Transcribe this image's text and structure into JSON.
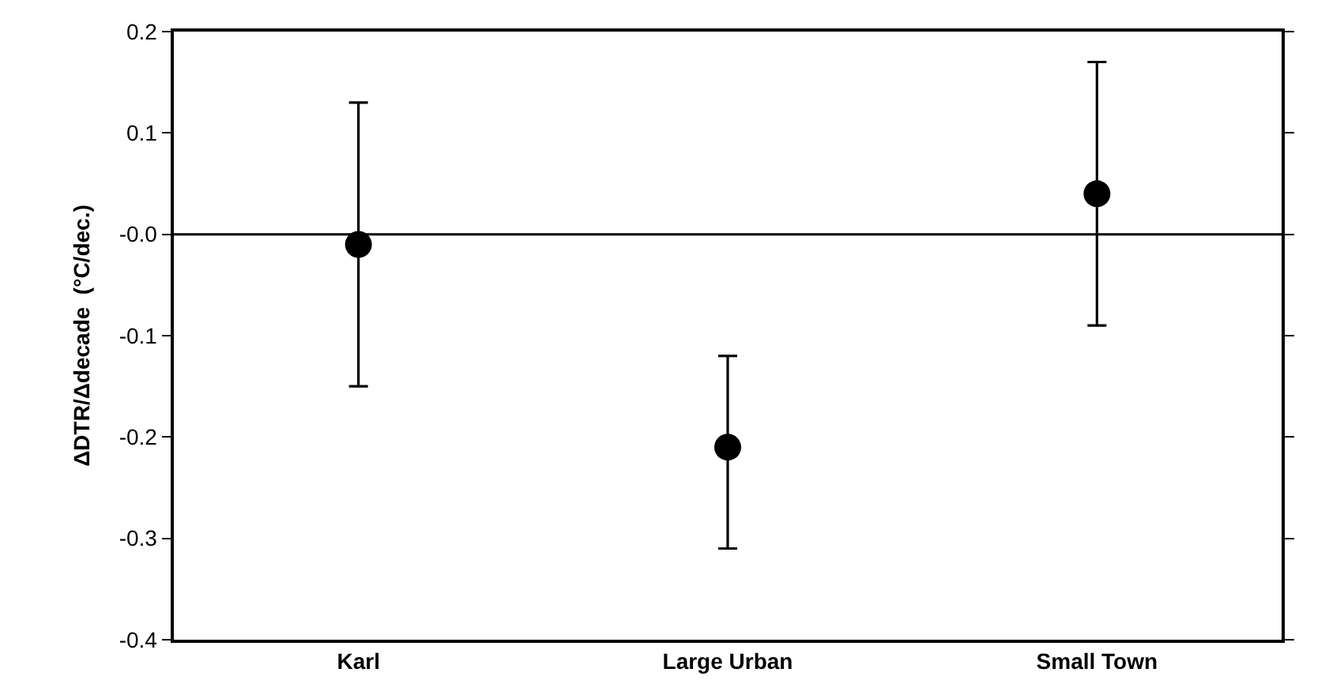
{
  "chart_data": {
    "type": "scatter",
    "ylabel": "ΔDTR/Δdecade  (°C/dec.)",
    "categories": [
      "Karl",
      "Large Urban",
      "Small Town"
    ],
    "series": [
      {
        "color": "#000000",
        "values": [
          -0.01,
          -0.21,
          0.04
        ],
        "errors": [
          [
            -0.15,
            0.13
          ],
          [
            -0.31,
            -0.12
          ],
          [
            -0.09,
            0.17
          ]
        ]
      }
    ],
    "ylim": [
      -0.4,
      0.2
    ],
    "yticks": [
      -0.4,
      -0.3,
      -0.2,
      -0.1,
      {
        "value": 0,
        "label": "-0.0"
      },
      0.1,
      0.2
    ],
    "ref_lines": [
      {
        "axis": "y",
        "value": 0,
        "color": "#000000"
      }
    ],
    "marker": "circle"
  }
}
